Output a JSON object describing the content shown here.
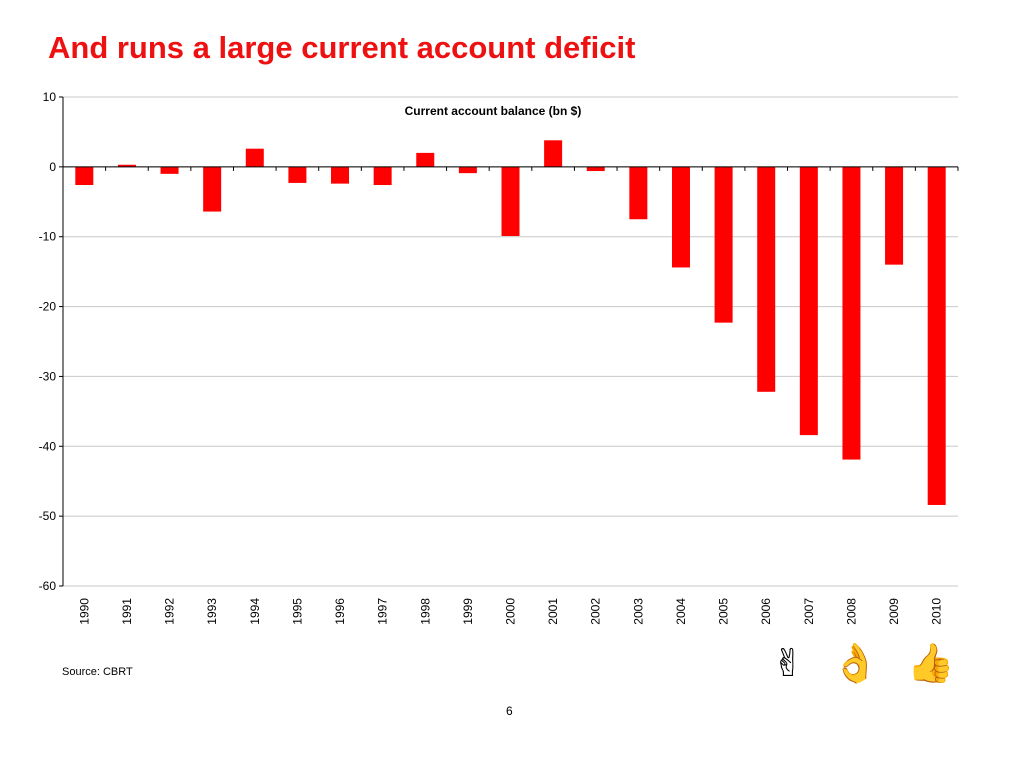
{
  "slide": {
    "title": "And runs a large current account deficit",
    "source": "Source: CBRT",
    "page_number": "6"
  },
  "icons": [
    {
      "name": "victory-hand-icon",
      "glyph": "✌",
      "color": "#000000"
    },
    {
      "name": "ok-hand-icon",
      "glyph": "👌",
      "color": "#000000"
    },
    {
      "name": "thumbs-up-icon",
      "glyph": "👍",
      "color": "#ee1111"
    }
  ],
  "colors": {
    "title": "#ee1111",
    "bar": "#ff0000",
    "grid": "#c8c8c8",
    "axis": "#000000"
  },
  "chart_data": {
    "type": "bar",
    "title": "Current account balance (bn $)",
    "xlabel": "",
    "ylabel": "",
    "ylim": [
      -60,
      10
    ],
    "yticks": [
      10,
      0,
      -10,
      -20,
      -30,
      -40,
      -50,
      -60
    ],
    "grid": true,
    "legend": "none",
    "categories": [
      "1990",
      "1991",
      "1992",
      "1993",
      "1994",
      "1995",
      "1996",
      "1997",
      "1998",
      "1999",
      "2000",
      "2001",
      "2002",
      "2003",
      "2004",
      "2005",
      "2006",
      "2007",
      "2008",
      "2009",
      "2010"
    ],
    "values": [
      -2.6,
      0.3,
      -1.0,
      -6.4,
      2.6,
      -2.3,
      -2.4,
      -2.6,
      2.0,
      -0.9,
      -9.9,
      3.8,
      -0.6,
      -7.5,
      -14.4,
      -22.3,
      -32.2,
      -38.4,
      -41.9,
      -14.0,
      -48.4
    ]
  }
}
